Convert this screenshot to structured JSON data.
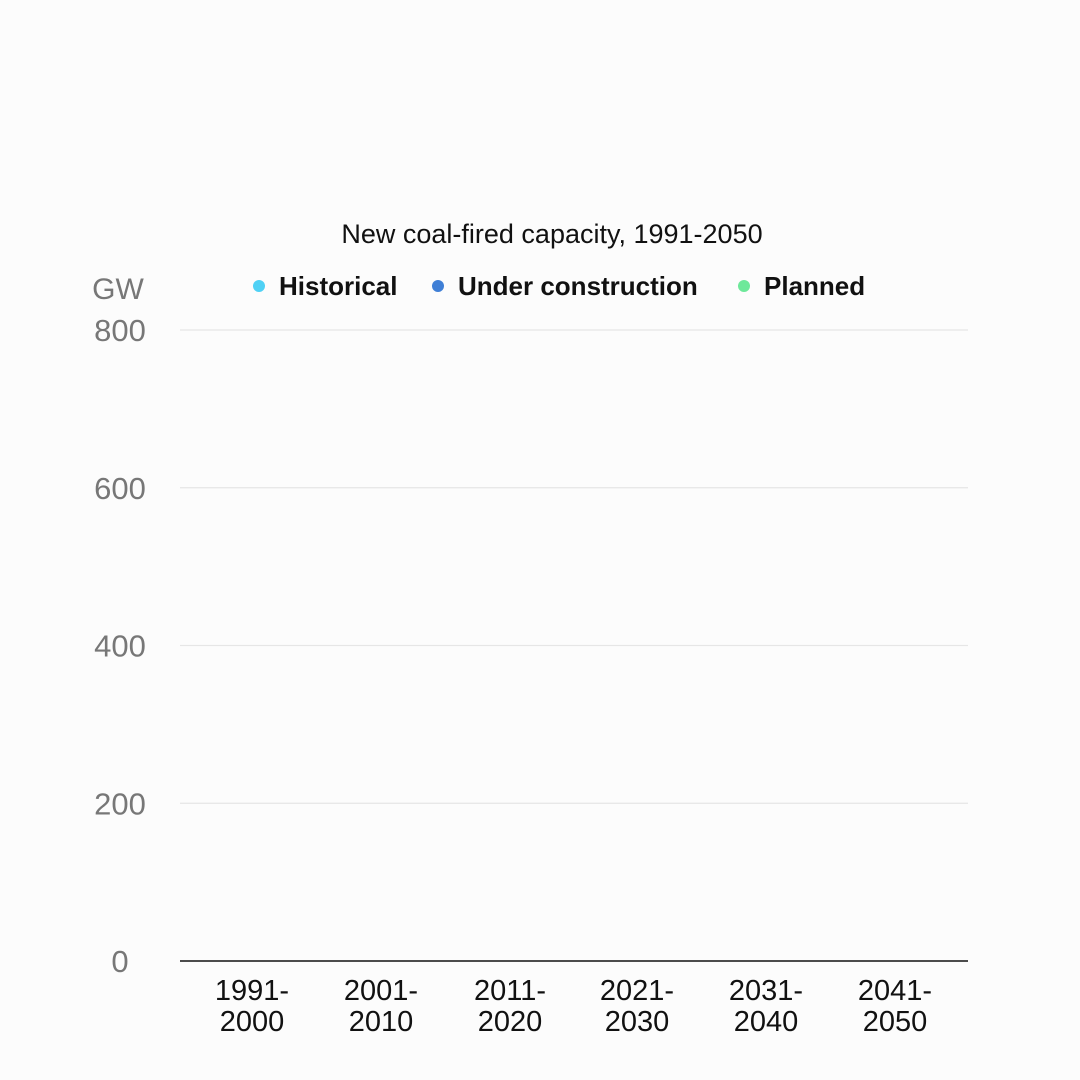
{
  "chart_data": {
    "type": "bar",
    "stacked": true,
    "title": "New coal-fired capacity, 1991-2050",
    "ylabel": "GW",
    "xlabel": "",
    "ylim": [
      0,
      800
    ],
    "yticks": [
      0,
      200,
      400,
      600,
      800
    ],
    "grid": true,
    "legend_placement": "top",
    "categories": [
      [
        "1991-",
        "2000"
      ],
      [
        "2001-",
        "2010"
      ],
      [
        "2011-",
        "2020"
      ],
      [
        "2021-",
        "2030"
      ],
      [
        "2031-",
        "2040"
      ],
      [
        "2041-",
        "2050"
      ]
    ],
    "series": [
      {
        "name": "Historical",
        "color": "#4fd1f5",
        "values": [
          0,
          0,
          0,
          0,
          0,
          0
        ]
      },
      {
        "name": "Under construction",
        "color": "#3f7fd6",
        "values": [
          0,
          0,
          0,
          0,
          0,
          0
        ]
      },
      {
        "name": "Planned",
        "color": "#6ee89a",
        "values": [
          0,
          0,
          0,
          0,
          0,
          0
        ]
      }
    ]
  },
  "colors": {
    "background": "#fcfcfc",
    "gridline": "#e6e6e6",
    "axis": "#111111",
    "tick_label": "#777777",
    "category_label": "#111111",
    "title": "#111111"
  }
}
